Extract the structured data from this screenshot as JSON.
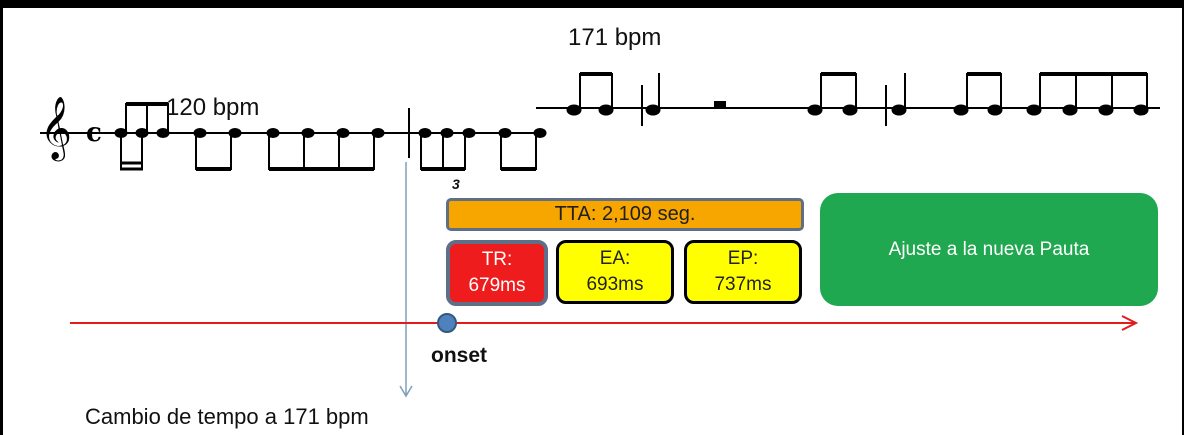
{
  "labels": {
    "bpm_high": "171 bpm",
    "bpm_low": "120 bpm",
    "triplet": "3",
    "onset": "onset",
    "tempo_change": "Cambio de tempo a 171 bpm"
  },
  "boxes": {
    "tta": "TTA: 2,109 seg.",
    "tr": {
      "label": "TR:",
      "value": "679ms"
    },
    "ea": {
      "label": "EA:",
      "value": "693ms"
    },
    "ep": {
      "label": "EP:",
      "value": "737ms"
    },
    "adjust": "Ajuste a la nueva Pauta"
  },
  "colors": {
    "tta": "#f7a600",
    "tr": "#ee1c1c",
    "ea": "#ffff00",
    "ep": "#ffff00",
    "adjust": "#1fa84f",
    "timeline": "#e21b1b",
    "onset_dot": "#4f81bd",
    "tempo_change_arrow": "#7f9fb8"
  },
  "icons": {
    "clef": "treble-clef-icon",
    "time_signature": "common-time-icon"
  }
}
